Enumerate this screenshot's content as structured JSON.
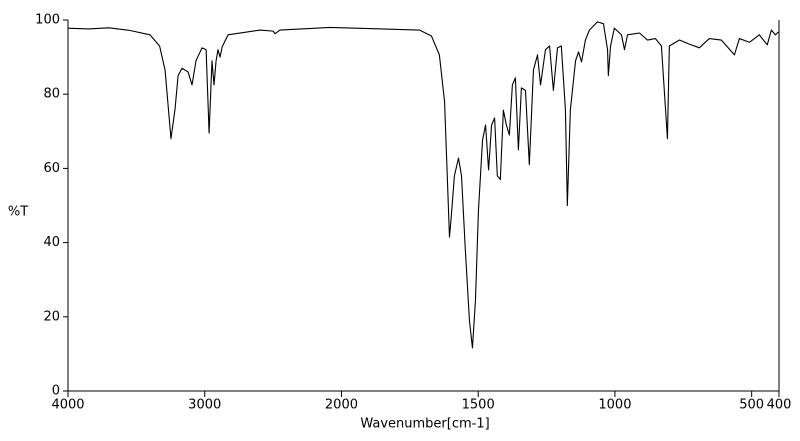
{
  "chart_data": {
    "type": "line",
    "xlabel": "Wavenumber[cm-1]",
    "ylabel": "%T",
    "xlim": [
      4000,
      400
    ],
    "ylim": [
      0,
      100
    ],
    "x_scale_break": 2000,
    "x_scale_ratio": 2,
    "xticks": [
      4000,
      3000,
      2000,
      1500,
      1000,
      500,
      400
    ],
    "yticks": [
      0,
      20,
      40,
      60,
      80,
      100
    ],
    "color": "#000000",
    "x": [
      4000,
      3850,
      3700,
      3550,
      3400,
      3330,
      3290,
      3247,
      3217,
      3195,
      3166,
      3122,
      3093,
      3064,
      3020,
      2990,
      2968,
      2947,
      2932,
      2917,
      2903,
      2888,
      2873,
      2830,
      2595,
      2500,
      2486,
      2450,
      2083,
      1715,
      1671,
      1642,
      1623,
      1605,
      1598,
      1587,
      1572,
      1561,
      1547,
      1532,
      1521,
      1510,
      1499,
      1484,
      1473,
      1462,
      1451,
      1440,
      1430,
      1419,
      1408,
      1397,
      1386,
      1375,
      1364,
      1353,
      1342,
      1327,
      1313,
      1298,
      1283,
      1272,
      1254,
      1239,
      1225,
      1210,
      1196,
      1181,
      1174,
      1163,
      1144,
      1133,
      1122,
      1108,
      1093,
      1064,
      1042,
      1027,
      1024,
      1016,
      1002,
      976,
      965,
      954,
      910,
      881,
      852,
      830,
      808,
      801,
      764,
      728,
      691,
      655,
      611,
      563,
      545,
      508,
      472,
      443,
      428,
      413,
      402
    ],
    "values": [
      97.8,
      97.6,
      97.9,
      97.2,
      96,
      93,
      86.5,
      68,
      76,
      85,
      87,
      86,
      82.5,
      89,
      92.5,
      92,
      69.5,
      89,
      82.5,
      89,
      92,
      90,
      92.7,
      96,
      97.3,
      97,
      96.3,
      97.3,
      98,
      97.3,
      95.7,
      90.6,
      78,
      41.5,
      47.4,
      58,
      62.8,
      58,
      38,
      19,
      11.6,
      24.5,
      48.8,
      67.7,
      71.7,
      59.6,
      71.7,
      73.6,
      58,
      57,
      75.7,
      71.7,
      69,
      82.5,
      84.4,
      65,
      81.7,
      81,
      61,
      86.5,
      90.6,
      82.5,
      92,
      93,
      81,
      92.5,
      93,
      75.7,
      50,
      75.7,
      89,
      91.4,
      88.7,
      94.6,
      97.3,
      99.5,
      99,
      92,
      85,
      93,
      97.8,
      96,
      92,
      96,
      96.5,
      94.6,
      95,
      93,
      68,
      93,
      94.6,
      93.5,
      92.5,
      95,
      94.6,
      90.6,
      95,
      94,
      96,
      93.3,
      97.3,
      96,
      96.8
    ]
  }
}
